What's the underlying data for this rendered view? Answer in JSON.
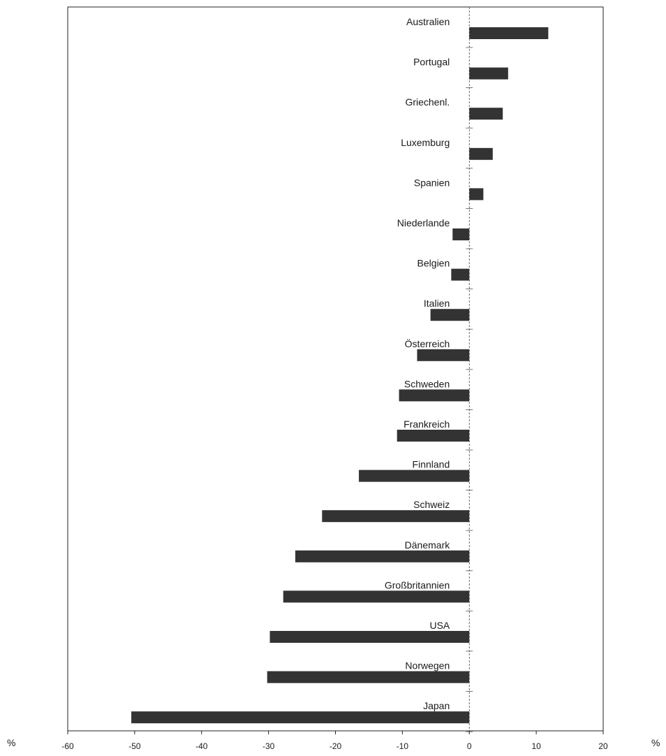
{
  "chart_data": {
    "type": "bar",
    "orientation": "horizontal",
    "categories": [
      "Australien",
      "Portugal",
      "Griechenl.",
      "Luxemburg",
      "Spanien",
      "Niederlande",
      "Belgien",
      "Italien",
      "Österreich",
      "Schweden",
      "Frankreich",
      "Finnland",
      "Schweiz",
      "Dänemark",
      "Großbritannien",
      "USA",
      "Norwegen",
      "Japan"
    ],
    "values": [
      11.8,
      5.8,
      5.0,
      3.5,
      2.1,
      -2.5,
      -2.7,
      -5.8,
      -7.8,
      -10.5,
      -10.8,
      -16.5,
      -22.0,
      -26.0,
      -27.8,
      -29.8,
      -30.2,
      -50.5
    ],
    "xlim": [
      -60,
      20
    ],
    "xticks": [
      -60,
      -50,
      -40,
      -30,
      -20,
      -10,
      0,
      10,
      20
    ],
    "xlabel_left": "%",
    "xlabel_right": "%",
    "bar_color": "#333333",
    "grid": false
  }
}
